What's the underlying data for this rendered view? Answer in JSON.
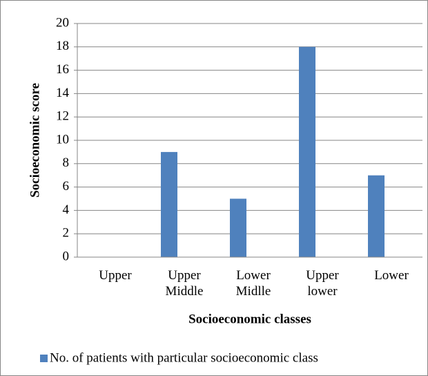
{
  "chart_data": {
    "type": "bar",
    "xlabel": "Socioeconomic classes",
    "ylabel": "Socioeconomic score",
    "categories": [
      "Upper",
      "Upper Middle",
      "Lower Midlle",
      "Upper lower",
      "Lower"
    ],
    "series": [
      {
        "name": "No. of patients with particular socioeconomic class",
        "color": "#4f81bd",
        "values": [
          0,
          9,
          5,
          18,
          7
        ]
      }
    ],
    "ylim": [
      0,
      20
    ],
    "yticks": [
      0,
      2,
      4,
      6,
      8,
      10,
      12,
      14,
      16,
      18,
      20
    ],
    "grid": true,
    "legend": "bottom"
  }
}
